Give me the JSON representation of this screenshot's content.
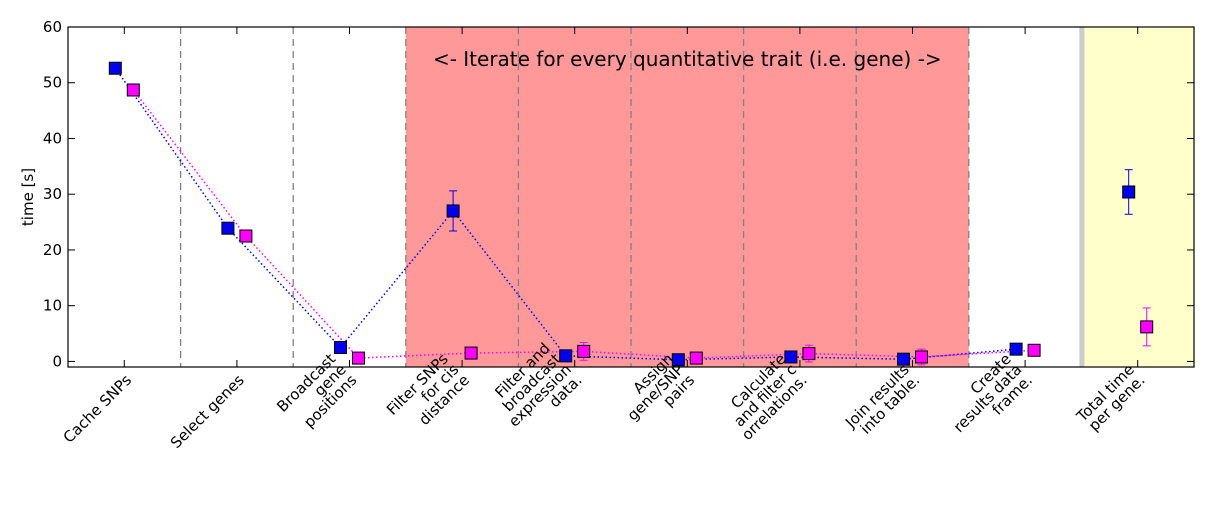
{
  "chart_data": {
    "type": "scatter",
    "xlabel": "",
    "ylabel": "time [s]",
    "ylim": [
      -1,
      60
    ],
    "yticks": [
      0,
      10,
      20,
      30,
      40,
      50,
      60
    ],
    "grid": false,
    "categories": [
      "Cache SNPs",
      "Select genes",
      "Broadcast\ngene\npositions",
      "Filter SNPs\nfor cis\ndistance",
      "Filter and\nbroadcast\nexpression\ndata.",
      "Assign\ngene/SNP\npairs",
      "Calculate\nand filter c\norrelations.",
      "Join results\ninto table.",
      "Create\nresults data\nframe.",
      "Total time\nper gene."
    ],
    "dividers_after": [
      0,
      1,
      2,
      3,
      4,
      5,
      6,
      7
    ],
    "shaded_region": {
      "from_category": 3,
      "to_category": 7,
      "color": "#ff9999"
    },
    "total_region": {
      "category": 9,
      "color": "#ffffcc",
      "edge_color": "#cccccc"
    },
    "annotation": "<- Iterate for every quantitative trait (i.e. gene) ->",
    "series": [
      {
        "color": "#0000ee",
        "values": [
          52.6,
          23.9,
          2.5,
          27.0,
          1.0,
          0.3,
          0.8,
          0.4,
          2.2,
          30.4
        ],
        "errors": [
          0,
          0,
          0,
          3.6,
          0.6,
          0.3,
          0.5,
          0.4,
          0.3,
          4.0
        ],
        "connected_through": 8
      },
      {
        "color": "#ff00ff",
        "values": [
          48.7,
          22.5,
          0.6,
          1.5,
          1.8,
          0.6,
          1.4,
          0.8,
          2.0,
          6.2
        ],
        "errors": [
          0,
          0,
          0,
          0.5,
          1.6,
          0.4,
          1.5,
          1.4,
          0.3,
          3.4
        ],
        "connected_through": 8
      }
    ]
  }
}
